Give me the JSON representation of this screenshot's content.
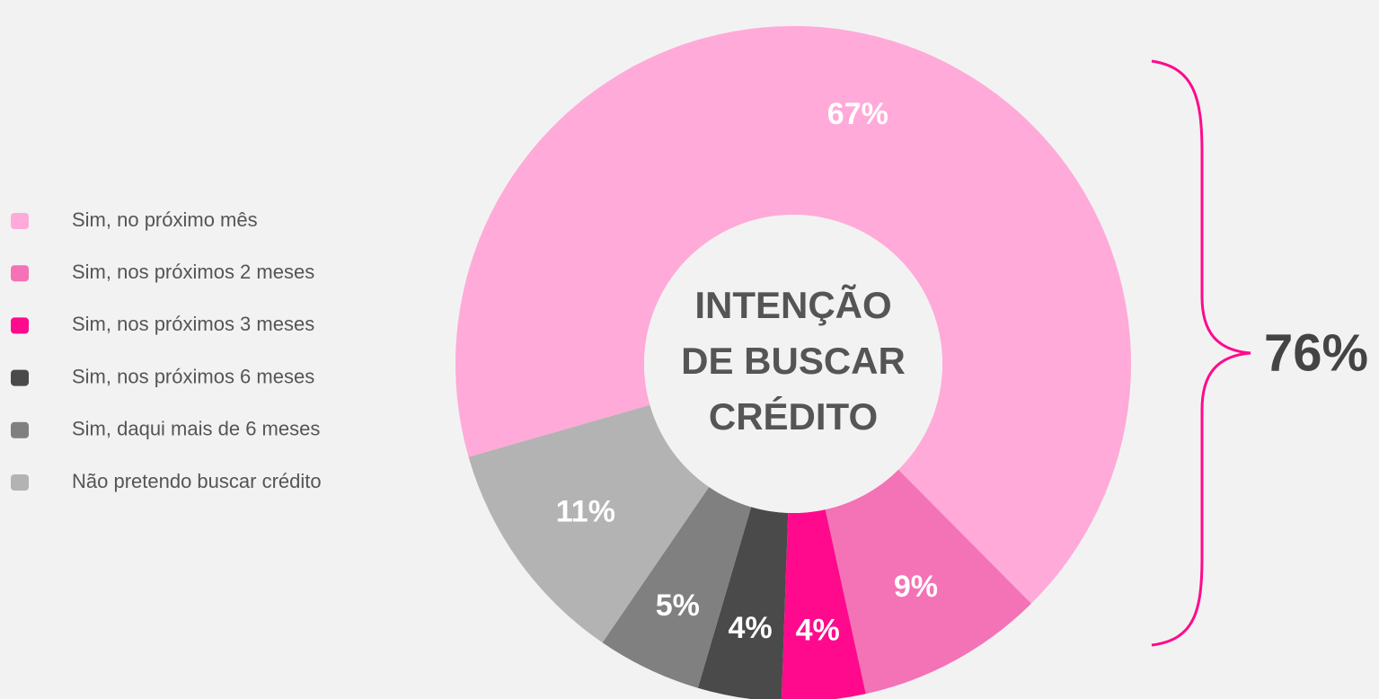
{
  "chart_data": {
    "type": "donut",
    "categories": [
      "Sim, no próximo mês",
      "Sim, nos próximos 2 meses",
      "Sim, nos próximos 3 meses",
      "Sim, nos próximos 6 meses",
      "Sim, daqui mais de 6 meses",
      "Não pretendo buscar crédito"
    ],
    "values": [
      67,
      9,
      4,
      4,
      5,
      11
    ],
    "value_labels": [
      "67%",
      "9%",
      "4%",
      "4%",
      "5%",
      "11%"
    ],
    "colors": [
      "#ffaad8",
      "#f472b6",
      "#ff0a8c",
      "#4a4a4a",
      "#808080",
      "#b3b3b3"
    ],
    "center_label": [
      "INTENÇÃO",
      "DE BUSCAR",
      "CRÉDITO"
    ],
    "annotation": "76%",
    "legend": "left"
  }
}
